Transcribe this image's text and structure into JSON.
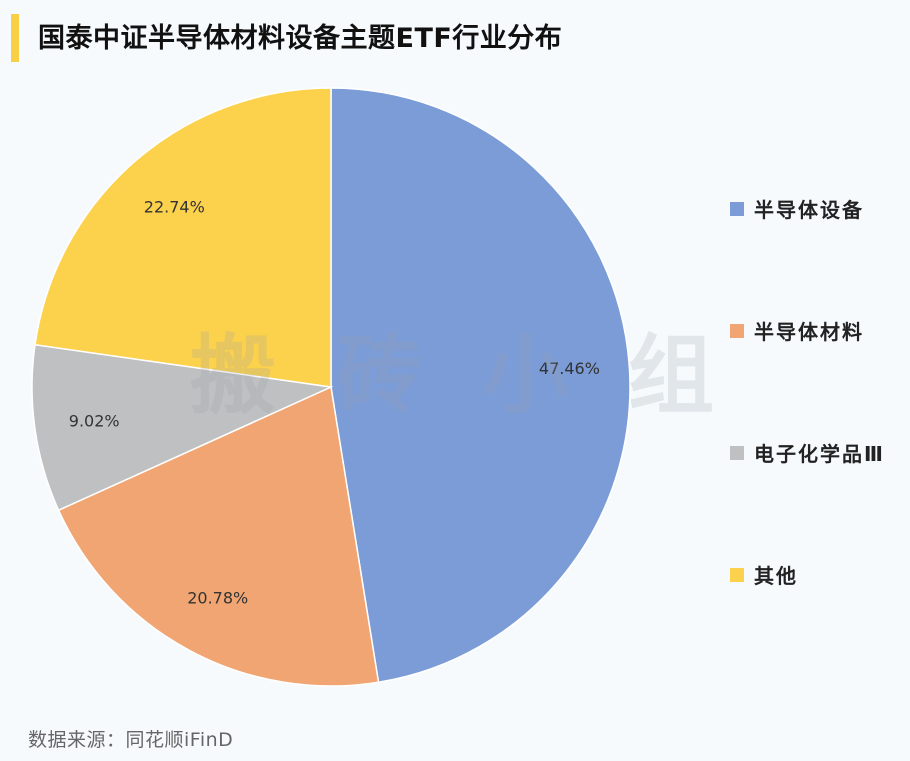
{
  "title": "国泰中证半导体材料设备主题ETF行业分布",
  "watermark": "搬砖小组",
  "source": "数据来源：同花顺iFinD",
  "chart_data": {
    "type": "pie",
    "title": "国泰中证半导体材料设备主题ETF行业分布",
    "slices": [
      {
        "label": "半导体设备",
        "value": 47.46,
        "display": "47.46%",
        "color": "#7b9cd6"
      },
      {
        "label": "半导体材料",
        "value": 20.78,
        "display": "20.78%",
        "color": "#f0a572"
      },
      {
        "label": "电子化学品Ⅲ",
        "value": 9.02,
        "display": "9.02%",
        "color": "#bfc0c1"
      },
      {
        "label": "其他",
        "value": 22.74,
        "display": "22.74%",
        "color": "#fcd14c"
      }
    ],
    "start_angle": "12 o'clock",
    "direction": "clockwise",
    "legend_position": "right"
  }
}
